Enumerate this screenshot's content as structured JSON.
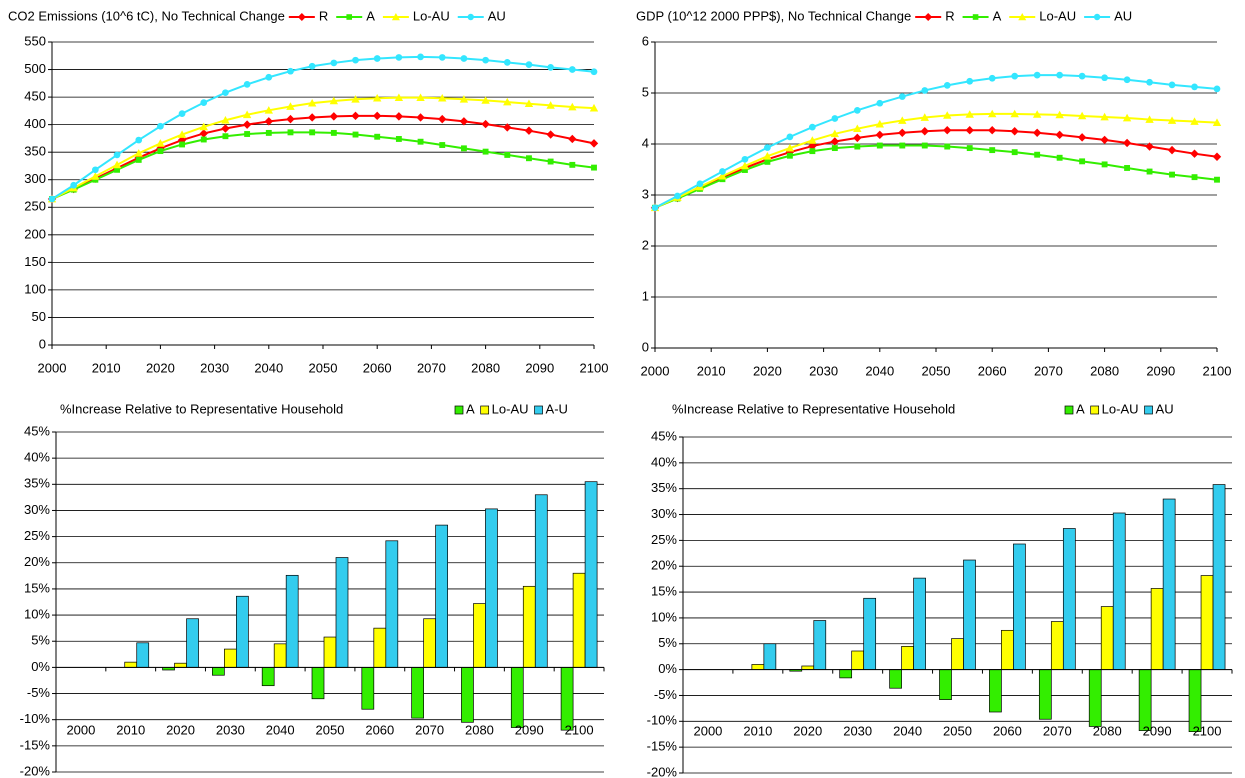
{
  "chart_data": [
    {
      "type": "line",
      "title": "CO2 Emissions (10^6 tC), No Technical Change",
      "x": [
        2000,
        2004,
        2008,
        2012,
        2016,
        2020,
        2024,
        2028,
        2032,
        2036,
        2040,
        2044,
        2048,
        2052,
        2056,
        2060,
        2064,
        2068,
        2072,
        2076,
        2080,
        2084,
        2088,
        2092,
        2096,
        2100
      ],
      "series": [
        {
          "name": "R",
          "color": "#ff0000",
          "marker": "diamond",
          "values": [
            265,
            283,
            302,
            321,
            340,
            357,
            372,
            384,
            393,
            400,
            406,
            410,
            413,
            415,
            416,
            416,
            415,
            413,
            410,
            406,
            401,
            395,
            389,
            382,
            374,
            366
          ]
        },
        {
          "name": "A",
          "color": "#33ee00",
          "marker": "square",
          "values": [
            265,
            282,
            300,
            318,
            336,
            352,
            364,
            373,
            379,
            383,
            385,
            386,
            386,
            385,
            382,
            378,
            374,
            369,
            363,
            357,
            351,
            345,
            339,
            333,
            327,
            322
          ]
        },
        {
          "name": "Lo-AU",
          "color": "#ffff00",
          "marker": "triangle",
          "values": [
            265,
            285,
            306,
            327,
            348,
            366,
            382,
            396,
            408,
            418,
            426,
            433,
            439,
            443,
            446,
            448,
            449,
            449,
            448,
            446,
            444,
            441,
            438,
            435,
            432,
            430
          ]
        },
        {
          "name": "AU",
          "color": "#33e6ff",
          "marker": "circle",
          "values": [
            265,
            290,
            318,
            345,
            372,
            397,
            420,
            440,
            458,
            473,
            486,
            497,
            506,
            512,
            517,
            520,
            522,
            523,
            522,
            520,
            517,
            513,
            509,
            504,
            500,
            496
          ]
        }
      ],
      "xlim": [
        2000,
        2100
      ],
      "xticks": [
        2000,
        2010,
        2020,
        2030,
        2040,
        2050,
        2060,
        2070,
        2080,
        2090,
        2100
      ],
      "ylim": [
        0,
        550
      ],
      "yticks": [
        0,
        50,
        100,
        150,
        200,
        250,
        300,
        350,
        400,
        450,
        500,
        550
      ],
      "grid": true
    },
    {
      "type": "line",
      "title": "GDP (10^12 2000 PPP$), No Technical Change",
      "x": [
        2000,
        2004,
        2008,
        2012,
        2016,
        2020,
        2024,
        2028,
        2032,
        2036,
        2040,
        2044,
        2048,
        2052,
        2056,
        2060,
        2064,
        2068,
        2072,
        2076,
        2080,
        2084,
        2088,
        2092,
        2096,
        2100
      ],
      "series": [
        {
          "name": "R",
          "color": "#ff0000",
          "marker": "diamond",
          "values": [
            2.75,
            2.94,
            3.14,
            3.34,
            3.53,
            3.7,
            3.84,
            3.96,
            4.05,
            4.12,
            4.18,
            4.22,
            4.25,
            4.27,
            4.27,
            4.27,
            4.25,
            4.22,
            4.18,
            4.13,
            4.08,
            4.02,
            3.95,
            3.88,
            3.81,
            3.75
          ]
        },
        {
          "name": "A",
          "color": "#33ee00",
          "marker": "square",
          "values": [
            2.75,
            2.93,
            3.12,
            3.31,
            3.49,
            3.65,
            3.77,
            3.86,
            3.92,
            3.95,
            3.97,
            3.97,
            3.97,
            3.95,
            3.92,
            3.88,
            3.84,
            3.79,
            3.73,
            3.66,
            3.6,
            3.53,
            3.46,
            3.4,
            3.35,
            3.3
          ]
        },
        {
          "name": "Lo-AU",
          "color": "#ffff00",
          "marker": "triangle",
          "values": [
            2.75,
            2.95,
            3.16,
            3.37,
            3.57,
            3.76,
            3.92,
            4.07,
            4.2,
            4.3,
            4.39,
            4.46,
            4.52,
            4.56,
            4.58,
            4.59,
            4.59,
            4.58,
            4.57,
            4.55,
            4.53,
            4.51,
            4.48,
            4.46,
            4.44,
            4.42
          ]
        },
        {
          "name": "AU",
          "color": "#33e6ff",
          "marker": "circle",
          "values": [
            2.75,
            2.98,
            3.22,
            3.46,
            3.7,
            3.93,
            4.14,
            4.33,
            4.5,
            4.66,
            4.8,
            4.93,
            5.05,
            5.15,
            5.23,
            5.29,
            5.33,
            5.35,
            5.35,
            5.33,
            5.3,
            5.26,
            5.21,
            5.16,
            5.12,
            5.08
          ]
        }
      ],
      "xlim": [
        2000,
        2100
      ],
      "xticks": [
        2000,
        2010,
        2020,
        2030,
        2040,
        2050,
        2060,
        2070,
        2080,
        2090,
        2100
      ],
      "ylim": [
        0,
        6
      ],
      "yticks": [
        0,
        1,
        2,
        3,
        4,
        5,
        6
      ],
      "grid": true
    },
    {
      "type": "bar",
      "title": "%Increase Relative to Representative Household",
      "categories": [
        "2000",
        "2010",
        "2020",
        "2030",
        "2040",
        "2050",
        "2060",
        "2070",
        "2080",
        "2090",
        "2100"
      ],
      "series": [
        {
          "name": "A",
          "color": "#33ee00",
          "values": [
            0,
            0,
            -0.5,
            -1.5,
            -3.5,
            -6,
            -8,
            -9.7,
            -10.5,
            -11.5,
            -12
          ]
        },
        {
          "name": "Lo-AU",
          "color": "#ffff00",
          "values": [
            0,
            1,
            0.8,
            3.5,
            4.5,
            5.8,
            7.5,
            9.3,
            12.2,
            15.5,
            18
          ]
        },
        {
          "name": "A-U",
          "color": "#33ccee",
          "values": [
            0,
            4.7,
            9.3,
            13.6,
            17.6,
            21,
            24.2,
            27.2,
            30.3,
            33,
            35.5
          ]
        }
      ],
      "ylim": [
        -20,
        45
      ],
      "yticks": [
        {
          "value": -20,
          "label": "-20%"
        },
        {
          "value": -15,
          "label": "-15%"
        },
        {
          "value": -10,
          "label": "-10%"
        },
        {
          "value": -5,
          "label": "-5%"
        },
        {
          "value": 0,
          "label": "0%"
        },
        {
          "value": 5,
          "label": "5%"
        },
        {
          "value": 10,
          "label": "10%"
        },
        {
          "value": 15,
          "label": "15%"
        },
        {
          "value": 20,
          "label": "20%"
        },
        {
          "value": 25,
          "label": "25%"
        },
        {
          "value": 30,
          "label": "30%"
        },
        {
          "value": 35,
          "label": "35%"
        },
        {
          "value": 40,
          "label": "40%"
        },
        {
          "value": 45,
          "label": "45%"
        }
      ],
      "grid": true
    },
    {
      "type": "bar",
      "title": "%Increase Relative to Representative Household",
      "categories": [
        "2000",
        "2010",
        "2020",
        "2030",
        "2040",
        "2050",
        "2060",
        "2070",
        "2080",
        "2090",
        "2100"
      ],
      "series": [
        {
          "name": "A",
          "color": "#33ee00",
          "values": [
            0,
            0,
            -0.3,
            -1.6,
            -3.6,
            -5.8,
            -8.2,
            -9.6,
            -11,
            -11.8,
            -12
          ]
        },
        {
          "name": "Lo-AU",
          "color": "#ffff00",
          "values": [
            0,
            1,
            0.7,
            3.6,
            4.5,
            6,
            7.6,
            9.3,
            12.2,
            15.7,
            18.2
          ]
        },
        {
          "name": "AU",
          "color": "#33ccee",
          "values": [
            0,
            5,
            9.5,
            13.8,
            17.7,
            21.2,
            24.3,
            27.3,
            30.3,
            33,
            35.8
          ]
        }
      ],
      "ylim": [
        -20,
        45
      ],
      "yticks": [
        {
          "value": -20,
          "label": "-20%"
        },
        {
          "value": -15,
          "label": "-15%"
        },
        {
          "value": -10,
          "label": "-10%"
        },
        {
          "value": -5,
          "label": "-5%"
        },
        {
          "value": 0,
          "label": "0%"
        },
        {
          "value": 5,
          "label": "5%"
        },
        {
          "value": 10,
          "label": "10%"
        },
        {
          "value": 15,
          "label": "15%"
        },
        {
          "value": 20,
          "label": "20%"
        },
        {
          "value": 25,
          "label": "25%"
        },
        {
          "value": 30,
          "label": "30%"
        },
        {
          "value": 35,
          "label": "35%"
        },
        {
          "value": 40,
          "label": "40%"
        },
        {
          "value": 45,
          "label": "45%"
        }
      ],
      "grid": true
    }
  ]
}
